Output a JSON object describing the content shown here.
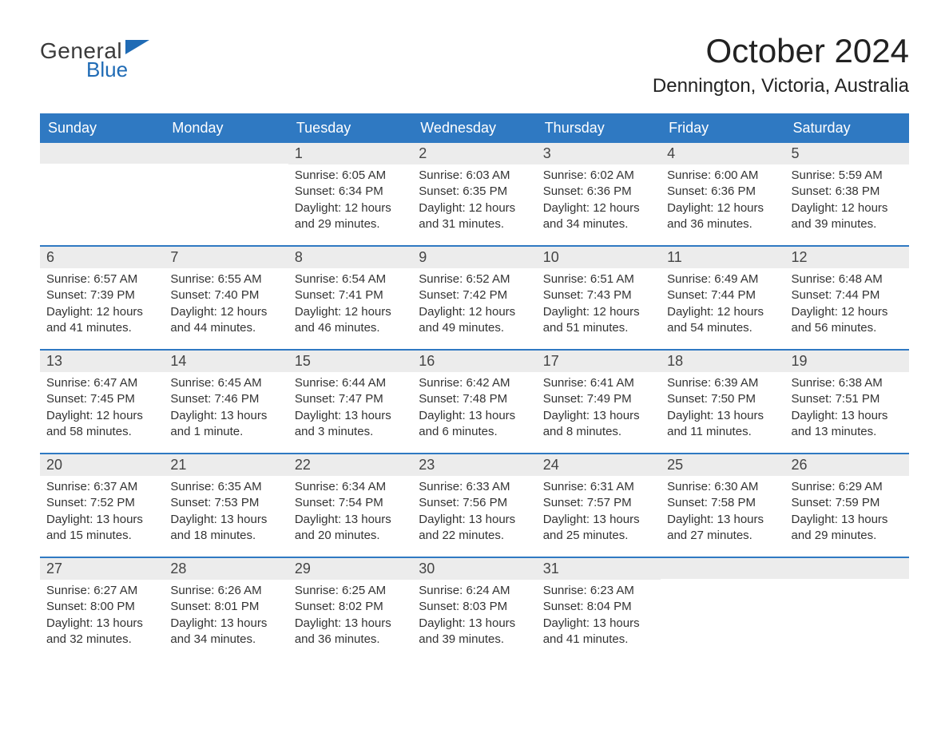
{
  "logo": {
    "general": "General",
    "blue": "Blue",
    "flag_color": "#1f6bb5"
  },
  "title": "October 2024",
  "subtitle": "Dennington, Victoria, Australia",
  "colors": {
    "header_bg": "#2f79c2",
    "header_text": "#ffffff",
    "daynum_bg": "#ececec",
    "week_border": "#2f79c2",
    "body_text": "#333333",
    "background": "#ffffff"
  },
  "days_of_week": [
    "Sunday",
    "Monday",
    "Tuesday",
    "Wednesday",
    "Thursday",
    "Friday",
    "Saturday"
  ],
  "layout": {
    "leading_blanks": 2,
    "days_in_month": 31,
    "trailing_blanks": 2
  },
  "days": {
    "1": {
      "sunrise": "Sunrise: 6:05 AM",
      "sunset": "Sunset: 6:34 PM",
      "daylight1": "Daylight: 12 hours",
      "daylight2": "and 29 minutes."
    },
    "2": {
      "sunrise": "Sunrise: 6:03 AM",
      "sunset": "Sunset: 6:35 PM",
      "daylight1": "Daylight: 12 hours",
      "daylight2": "and 31 minutes."
    },
    "3": {
      "sunrise": "Sunrise: 6:02 AM",
      "sunset": "Sunset: 6:36 PM",
      "daylight1": "Daylight: 12 hours",
      "daylight2": "and 34 minutes."
    },
    "4": {
      "sunrise": "Sunrise: 6:00 AM",
      "sunset": "Sunset: 6:36 PM",
      "daylight1": "Daylight: 12 hours",
      "daylight2": "and 36 minutes."
    },
    "5": {
      "sunrise": "Sunrise: 5:59 AM",
      "sunset": "Sunset: 6:38 PM",
      "daylight1": "Daylight: 12 hours",
      "daylight2": "and 39 minutes."
    },
    "6": {
      "sunrise": "Sunrise: 6:57 AM",
      "sunset": "Sunset: 7:39 PM",
      "daylight1": "Daylight: 12 hours",
      "daylight2": "and 41 minutes."
    },
    "7": {
      "sunrise": "Sunrise: 6:55 AM",
      "sunset": "Sunset: 7:40 PM",
      "daylight1": "Daylight: 12 hours",
      "daylight2": "and 44 minutes."
    },
    "8": {
      "sunrise": "Sunrise: 6:54 AM",
      "sunset": "Sunset: 7:41 PM",
      "daylight1": "Daylight: 12 hours",
      "daylight2": "and 46 minutes."
    },
    "9": {
      "sunrise": "Sunrise: 6:52 AM",
      "sunset": "Sunset: 7:42 PM",
      "daylight1": "Daylight: 12 hours",
      "daylight2": "and 49 minutes."
    },
    "10": {
      "sunrise": "Sunrise: 6:51 AM",
      "sunset": "Sunset: 7:43 PM",
      "daylight1": "Daylight: 12 hours",
      "daylight2": "and 51 minutes."
    },
    "11": {
      "sunrise": "Sunrise: 6:49 AM",
      "sunset": "Sunset: 7:44 PM",
      "daylight1": "Daylight: 12 hours",
      "daylight2": "and 54 minutes."
    },
    "12": {
      "sunrise": "Sunrise: 6:48 AM",
      "sunset": "Sunset: 7:44 PM",
      "daylight1": "Daylight: 12 hours",
      "daylight2": "and 56 minutes."
    },
    "13": {
      "sunrise": "Sunrise: 6:47 AM",
      "sunset": "Sunset: 7:45 PM",
      "daylight1": "Daylight: 12 hours",
      "daylight2": "and 58 minutes."
    },
    "14": {
      "sunrise": "Sunrise: 6:45 AM",
      "sunset": "Sunset: 7:46 PM",
      "daylight1": "Daylight: 13 hours",
      "daylight2": "and 1 minute."
    },
    "15": {
      "sunrise": "Sunrise: 6:44 AM",
      "sunset": "Sunset: 7:47 PM",
      "daylight1": "Daylight: 13 hours",
      "daylight2": "and 3 minutes."
    },
    "16": {
      "sunrise": "Sunrise: 6:42 AM",
      "sunset": "Sunset: 7:48 PM",
      "daylight1": "Daylight: 13 hours",
      "daylight2": "and 6 minutes."
    },
    "17": {
      "sunrise": "Sunrise: 6:41 AM",
      "sunset": "Sunset: 7:49 PM",
      "daylight1": "Daylight: 13 hours",
      "daylight2": "and 8 minutes."
    },
    "18": {
      "sunrise": "Sunrise: 6:39 AM",
      "sunset": "Sunset: 7:50 PM",
      "daylight1": "Daylight: 13 hours",
      "daylight2": "and 11 minutes."
    },
    "19": {
      "sunrise": "Sunrise: 6:38 AM",
      "sunset": "Sunset: 7:51 PM",
      "daylight1": "Daylight: 13 hours",
      "daylight2": "and 13 minutes."
    },
    "20": {
      "sunrise": "Sunrise: 6:37 AM",
      "sunset": "Sunset: 7:52 PM",
      "daylight1": "Daylight: 13 hours",
      "daylight2": "and 15 minutes."
    },
    "21": {
      "sunrise": "Sunrise: 6:35 AM",
      "sunset": "Sunset: 7:53 PM",
      "daylight1": "Daylight: 13 hours",
      "daylight2": "and 18 minutes."
    },
    "22": {
      "sunrise": "Sunrise: 6:34 AM",
      "sunset": "Sunset: 7:54 PM",
      "daylight1": "Daylight: 13 hours",
      "daylight2": "and 20 minutes."
    },
    "23": {
      "sunrise": "Sunrise: 6:33 AM",
      "sunset": "Sunset: 7:56 PM",
      "daylight1": "Daylight: 13 hours",
      "daylight2": "and 22 minutes."
    },
    "24": {
      "sunrise": "Sunrise: 6:31 AM",
      "sunset": "Sunset: 7:57 PM",
      "daylight1": "Daylight: 13 hours",
      "daylight2": "and 25 minutes."
    },
    "25": {
      "sunrise": "Sunrise: 6:30 AM",
      "sunset": "Sunset: 7:58 PM",
      "daylight1": "Daylight: 13 hours",
      "daylight2": "and 27 minutes."
    },
    "26": {
      "sunrise": "Sunrise: 6:29 AM",
      "sunset": "Sunset: 7:59 PM",
      "daylight1": "Daylight: 13 hours",
      "daylight2": "and 29 minutes."
    },
    "27": {
      "sunrise": "Sunrise: 6:27 AM",
      "sunset": "Sunset: 8:00 PM",
      "daylight1": "Daylight: 13 hours",
      "daylight2": "and 32 minutes."
    },
    "28": {
      "sunrise": "Sunrise: 6:26 AM",
      "sunset": "Sunset: 8:01 PM",
      "daylight1": "Daylight: 13 hours",
      "daylight2": "and 34 minutes."
    },
    "29": {
      "sunrise": "Sunrise: 6:25 AM",
      "sunset": "Sunset: 8:02 PM",
      "daylight1": "Daylight: 13 hours",
      "daylight2": "and 36 minutes."
    },
    "30": {
      "sunrise": "Sunrise: 6:24 AM",
      "sunset": "Sunset: 8:03 PM",
      "daylight1": "Daylight: 13 hours",
      "daylight2": "and 39 minutes."
    },
    "31": {
      "sunrise": "Sunrise: 6:23 AM",
      "sunset": "Sunset: 8:04 PM",
      "daylight1": "Daylight: 13 hours",
      "daylight2": "and 41 minutes."
    }
  }
}
